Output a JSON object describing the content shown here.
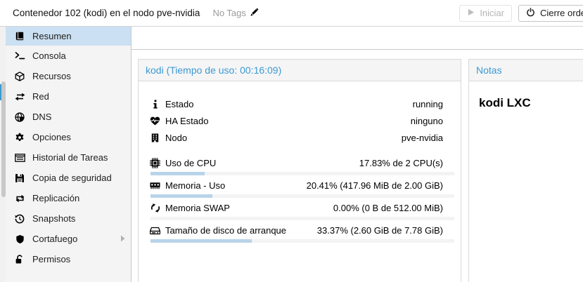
{
  "topbar": {
    "title": "Contenedor 102 (kodi) en el nodo pve-nvidia",
    "tags_label": "No Tags",
    "start_button": "Iniciar",
    "shutdown_button": "Cierre ordenado"
  },
  "sidebar": {
    "items": [
      {
        "label": "Resumen",
        "icon": "book-icon",
        "active": true
      },
      {
        "label": "Consola",
        "icon": "terminal-icon"
      },
      {
        "label": "Recursos",
        "icon": "cube-icon"
      },
      {
        "label": "Red",
        "icon": "exchange-icon"
      },
      {
        "label": "DNS",
        "icon": "globe-icon"
      },
      {
        "label": "Opciones",
        "icon": "gear-icon"
      },
      {
        "label": "Historial de Tareas",
        "icon": "task-list-icon"
      },
      {
        "label": "Copia de seguridad",
        "icon": "floppy-icon"
      },
      {
        "label": "Replicación",
        "icon": "retweet-icon"
      },
      {
        "label": "Snapshots",
        "icon": "history-icon"
      },
      {
        "label": "Cortafuego",
        "icon": "shield-icon",
        "has_submenu": true
      },
      {
        "label": "Permisos",
        "icon": "unlock-icon"
      }
    ]
  },
  "status_panel": {
    "title": "kodi (Tiempo de uso: 00:16:09)",
    "rows": [
      {
        "icon": "info-icon",
        "label": "Estado",
        "value": "running"
      },
      {
        "icon": "heartbeat-icon",
        "label": "HA Estado",
        "value": "ninguno"
      },
      {
        "icon": "building-icon",
        "label": "Nodo",
        "value": "pve-nvidia"
      }
    ],
    "usage_rows": [
      {
        "icon": "cpu-icon",
        "label": "Uso de CPU",
        "value": "17.83% de 2 CPU(s)",
        "percent": 17.83
      },
      {
        "icon": "memory-icon",
        "label": "Memoria - Uso",
        "value": "20.41% (417.96 MiB de 2.00 GiB)",
        "percent": 20.41
      },
      {
        "icon": "swap-icon",
        "label": "Memoria SWAP",
        "value": "0.00% (0 B de 512.00 MiB)",
        "percent": 0
      },
      {
        "icon": "disk-icon",
        "label": "Tamaño de disco de arranque",
        "value": "33.37% (2.60 GiB de 7.78 GiB)",
        "percent": 33.37
      }
    ]
  },
  "notes_panel": {
    "title": "Notas",
    "content": "kodi LXC"
  },
  "colors": {
    "accent_blue": "#3b99d4",
    "selected_nav": "#cbe0f2",
    "bar_fill": "#b8d4ea",
    "scroll_thumb_blue": "#3d9ad1"
  }
}
